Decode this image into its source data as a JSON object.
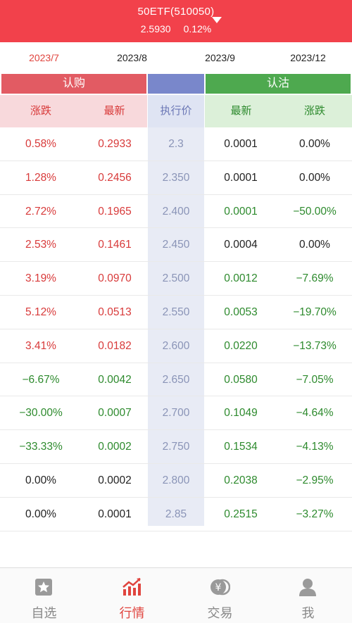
{
  "header": {
    "title": "50ETF(510050)",
    "price": "2.5930",
    "change": "0.12%"
  },
  "tabs": [
    {
      "label": "2023/7"
    },
    {
      "label": "2023/8"
    },
    {
      "label": "2023/9"
    },
    {
      "label": "2023/12"
    }
  ],
  "bands": {
    "call": "认购",
    "put": "认沽"
  },
  "columns": {
    "call_change": "涨跌",
    "call_last": "最新",
    "strike": "执行价",
    "put_last": "最新",
    "put_change": "涨跌"
  },
  "rows": [
    {
      "call_change": "0.58%",
      "call_last": "0.2933",
      "strike": "2.3",
      "put_last": "0.0001",
      "put_change": "0.00%"
    },
    {
      "call_change": "1.28%",
      "call_last": "0.2456",
      "strike": "2.350",
      "put_last": "0.0001",
      "put_change": "0.00%"
    },
    {
      "call_change": "2.72%",
      "call_last": "0.1965",
      "strike": "2.400",
      "put_last": "0.0001",
      "put_change": "−50.00%"
    },
    {
      "call_change": "2.53%",
      "call_last": "0.1461",
      "strike": "2.450",
      "put_last": "0.0004",
      "put_change": "0.00%"
    },
    {
      "call_change": "3.19%",
      "call_last": "0.0970",
      "strike": "2.500",
      "put_last": "0.0012",
      "put_change": "−7.69%"
    },
    {
      "call_change": "5.12%",
      "call_last": "0.0513",
      "strike": "2.550",
      "put_last": "0.0053",
      "put_change": "−19.70%"
    },
    {
      "call_change": "3.41%",
      "call_last": "0.0182",
      "strike": "2.600",
      "put_last": "0.0220",
      "put_change": "−13.73%"
    },
    {
      "call_change": "−6.67%",
      "call_last": "0.0042",
      "strike": "2.650",
      "put_last": "0.0580",
      "put_change": "−7.05%"
    },
    {
      "call_change": "−30.00%",
      "call_last": "0.0007",
      "strike": "2.700",
      "put_last": "0.1049",
      "put_change": "−4.64%"
    },
    {
      "call_change": "−33.33%",
      "call_last": "0.0002",
      "strike": "2.750",
      "put_last": "0.1534",
      "put_change": "−4.13%"
    },
    {
      "call_change": "0.00%",
      "call_last": "0.0002",
      "strike": "2.800",
      "put_last": "0.2038",
      "put_change": "−2.95%"
    },
    {
      "call_change": "0.00%",
      "call_last": "0.0001",
      "strike": "2.85",
      "put_last": "0.2515",
      "put_change": "−3.27%"
    }
  ],
  "nav": [
    {
      "label": "自选",
      "icon": "star-icon"
    },
    {
      "label": "行情",
      "icon": "chart-icon"
    },
    {
      "label": "交易",
      "icon": "yen-icon"
    },
    {
      "label": "我",
      "icon": "user-icon"
    }
  ],
  "colors": {
    "up": "#d83a3a",
    "down": "#2d8a2d",
    "flat": "#222222",
    "header": "#f2414b"
  }
}
